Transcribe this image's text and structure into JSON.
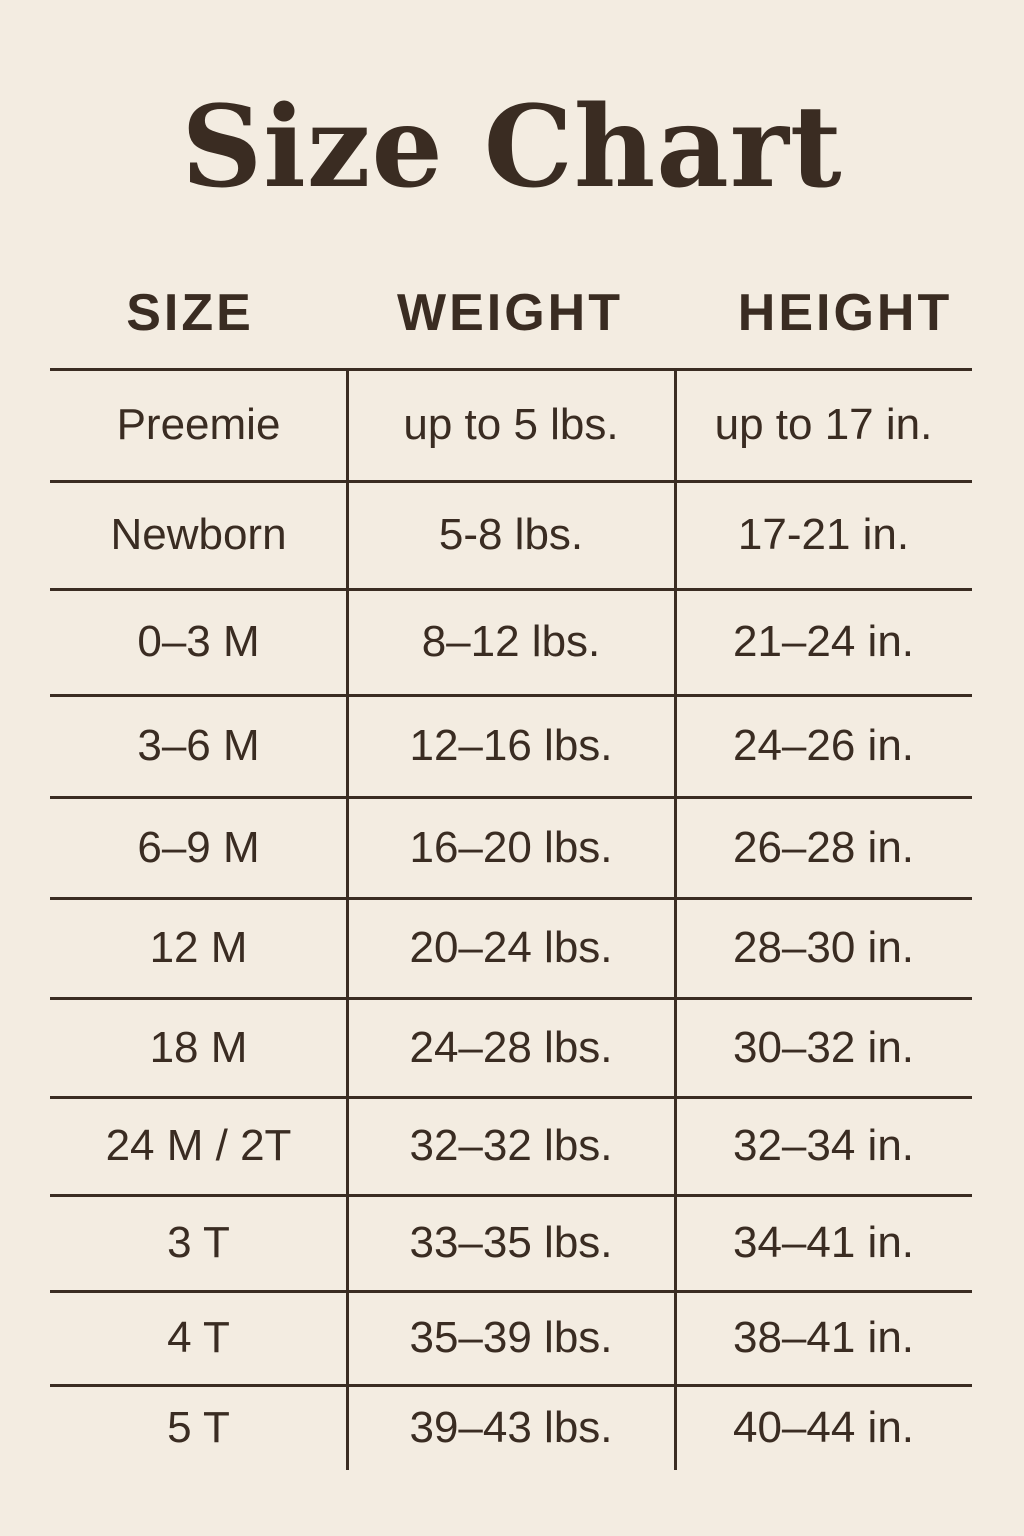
{
  "title": "Size Chart",
  "headers": [
    "SIZE",
    "WEIGHT",
    "HEIGHT"
  ],
  "rows": [
    [
      "Preemie",
      "up to 5 lbs.",
      "up to 17 in."
    ],
    [
      "Newborn",
      "5-8 lbs.",
      "17-21 in."
    ],
    [
      "0–3 M",
      "8–12 lbs.",
      "21–24 in."
    ],
    [
      "3–6 M",
      "12–16 lbs.",
      "24–26 in."
    ],
    [
      "6–9 M",
      "16–20 lbs.",
      "26–28 in."
    ],
    [
      "12 M",
      "20–24 lbs.",
      "28–30 in."
    ],
    [
      "18 M",
      "24–28 lbs.",
      "30–32 in."
    ],
    [
      "24 M / 2T",
      "32–32 lbs.",
      "32–34 in."
    ],
    [
      "3 T",
      "33–35 lbs.",
      "34–41 in."
    ],
    [
      "4 T",
      "35–39 lbs.",
      "38–41 in."
    ],
    [
      "5 T",
      "39–43 lbs.",
      "40–44 in."
    ]
  ],
  "colors": {
    "background": "#f3ece1",
    "text": "#3a2c22"
  }
}
